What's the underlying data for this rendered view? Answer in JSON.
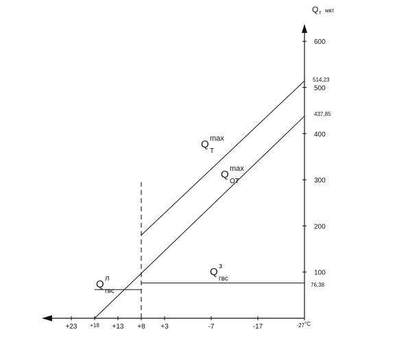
{
  "chart_data": {
    "type": "line",
    "y_axis": {
      "label_main": "Q",
      "label_sub": "т",
      "label_unit": "мвт",
      "ticks": [
        100,
        200,
        300,
        400,
        500,
        600
      ],
      "range": [
        0,
        650
      ]
    },
    "x_axis": {
      "tick_labels": [
        "+23",
        "+18",
        "+13",
        "+8",
        "+3",
        "-7",
        "-17",
        "-27"
      ],
      "tick_positions": [
        23,
        18,
        13,
        8,
        3,
        -7,
        -17,
        -27
      ],
      "range": [
        28,
        -27
      ],
      "end_unit": "°C"
    },
    "marked_values": {
      "v514": "514,23",
      "v437": "437,85",
      "v76": "76,38"
    },
    "series": [
      {
        "key": "qt",
        "label_main": "Q",
        "label_sub": "Т",
        "label_sup": "max",
        "x": [
          8,
          -27
        ],
        "y": [
          180,
          514.23
        ]
      },
      {
        "key": "qot",
        "label_main": "Q",
        "label_sub": "ОТ",
        "label_sup": "max",
        "x": [
          18,
          -27
        ],
        "y": [
          0,
          437.85
        ]
      },
      {
        "key": "qgvs_z",
        "label_main": "Q",
        "label_sub": "гвс",
        "label_sup": "з",
        "x": [
          8,
          -27
        ],
        "y": [
          76.38,
          76.38
        ]
      },
      {
        "key": "qgvs_l",
        "label_main": "Q",
        "label_sub": "гвс",
        "label_sup": "л",
        "x": [
          18,
          8
        ],
        "y": [
          62,
          62
        ]
      }
    ],
    "reference_line": {
      "x": 8,
      "y": [
        0,
        295
      ],
      "style": "dashed"
    }
  }
}
